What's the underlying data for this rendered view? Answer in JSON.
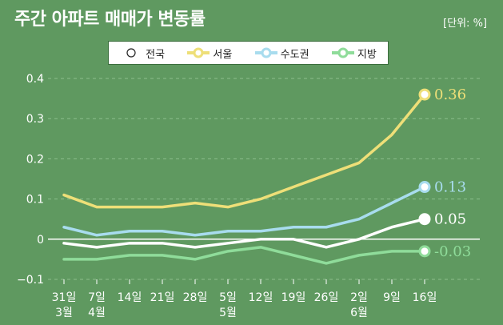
{
  "header": {
    "title": "주간 아파트 매매가 변동률",
    "unit": "[단위: %]"
  },
  "colors": {
    "background": "#5f9960",
    "전국": "#ffffff",
    "서울": "#eedf78",
    "수도권": "#a8dcee",
    "지방": "#8fdc9a"
  },
  "chart_data": {
    "type": "line",
    "categories": [
      "31일\n3월",
      "7일\n4월",
      "14일",
      "21일",
      "28일",
      "5일\n5월",
      "12일",
      "19일",
      "26일",
      "2일\n6월",
      "9일",
      "16일"
    ],
    "ylim": [
      -0.1,
      0.4
    ],
    "yticks": [
      "0.4",
      "0.3",
      "0.2",
      "0.1",
      "0",
      "−0.1"
    ],
    "grid": true,
    "legend_position": "top",
    "series": [
      {
        "name": "전국",
        "color": "#ffffff",
        "values": [
          -0.01,
          -0.02,
          -0.01,
          -0.01,
          -0.02,
          -0.01,
          0.0,
          0.0,
          -0.02,
          0.0,
          0.03,
          0.05
        ],
        "end_label": "0.05"
      },
      {
        "name": "서울",
        "color": "#eedf78",
        "values": [
          0.11,
          0.08,
          0.08,
          0.08,
          0.09,
          0.08,
          0.1,
          0.13,
          0.16,
          0.19,
          0.26,
          0.36
        ],
        "end_label": "0.36"
      },
      {
        "name": "수도권",
        "color": "#a8dcee",
        "values": [
          0.03,
          0.01,
          0.02,
          0.02,
          0.01,
          0.02,
          0.02,
          0.03,
          0.03,
          0.05,
          0.09,
          0.13
        ],
        "end_label": "0.13"
      },
      {
        "name": "지방",
        "color": "#8fdc9a",
        "values": [
          -0.05,
          -0.05,
          -0.04,
          -0.04,
          -0.05,
          -0.03,
          -0.02,
          -0.04,
          -0.06,
          -0.04,
          -0.03,
          -0.03
        ],
        "end_label": "-0.03"
      }
    ]
  }
}
